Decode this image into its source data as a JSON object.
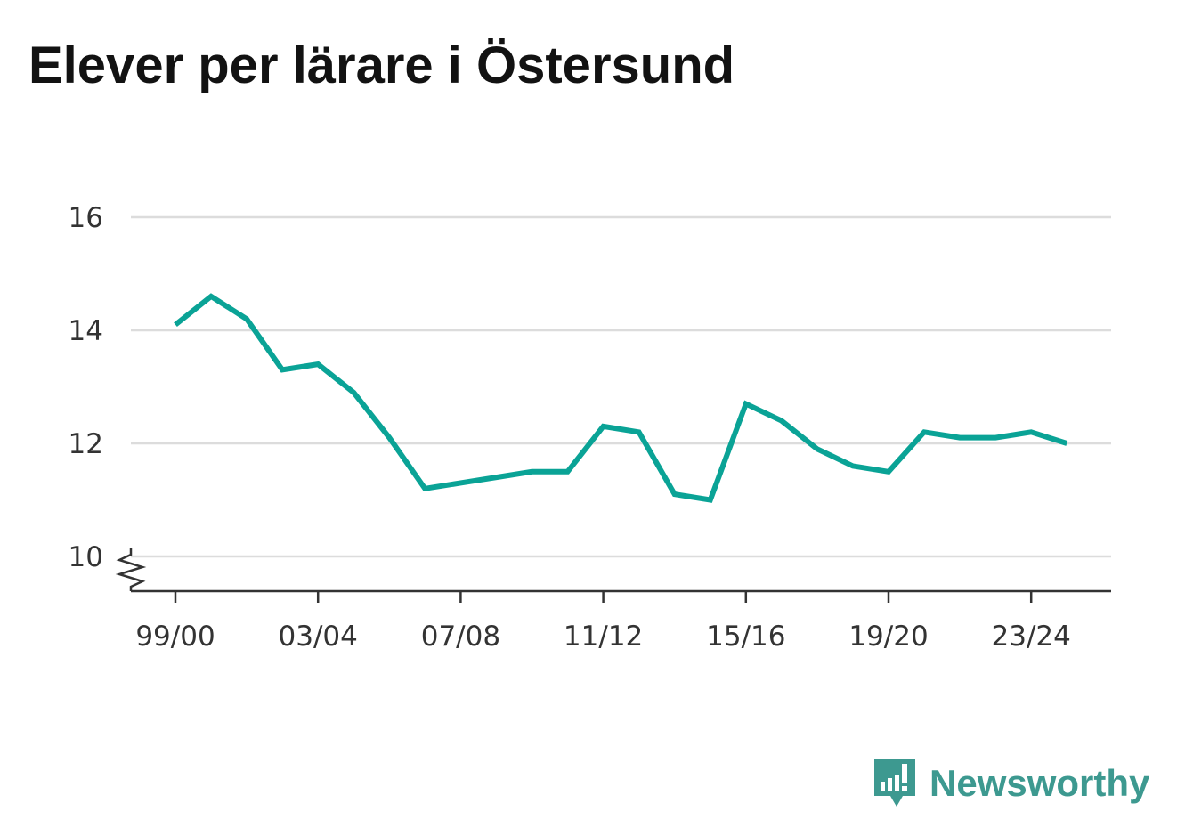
{
  "title": "Elever per lärare i Östersund",
  "brand": {
    "name": "Newsworthy",
    "color": "#3d9990"
  },
  "chart_data": {
    "type": "line",
    "title": "Elever per lärare i Östersund",
    "xlabel": "",
    "ylabel": "",
    "color": "#0aa396",
    "categories": [
      "99/00",
      "00/01",
      "01/02",
      "02/03",
      "03/04",
      "04/05",
      "05/06",
      "06/07",
      "07/08",
      "08/09",
      "09/10",
      "10/11",
      "11/12",
      "12/13",
      "13/14",
      "14/15",
      "15/16",
      "16/17",
      "17/18",
      "18/19",
      "19/20",
      "20/21",
      "21/22",
      "22/23",
      "23/24",
      "24/25"
    ],
    "values": [
      14.1,
      14.6,
      14.2,
      13.3,
      13.4,
      12.9,
      12.1,
      11.2,
      11.3,
      11.4,
      11.5,
      11.5,
      12.3,
      12.2,
      11.1,
      11.0,
      12.7,
      12.4,
      11.9,
      11.6,
      11.5,
      12.2,
      12.1,
      12.1,
      12.2,
      12.0
    ],
    "x_tick_labels": [
      "99/00",
      "03/04",
      "07/08",
      "11/12",
      "15/16",
      "19/20",
      "23/24"
    ],
    "y_ticks": [
      10,
      12,
      14,
      16
    ],
    "ylim": [
      10,
      16
    ],
    "y_axis_break": true,
    "grid": true
  }
}
